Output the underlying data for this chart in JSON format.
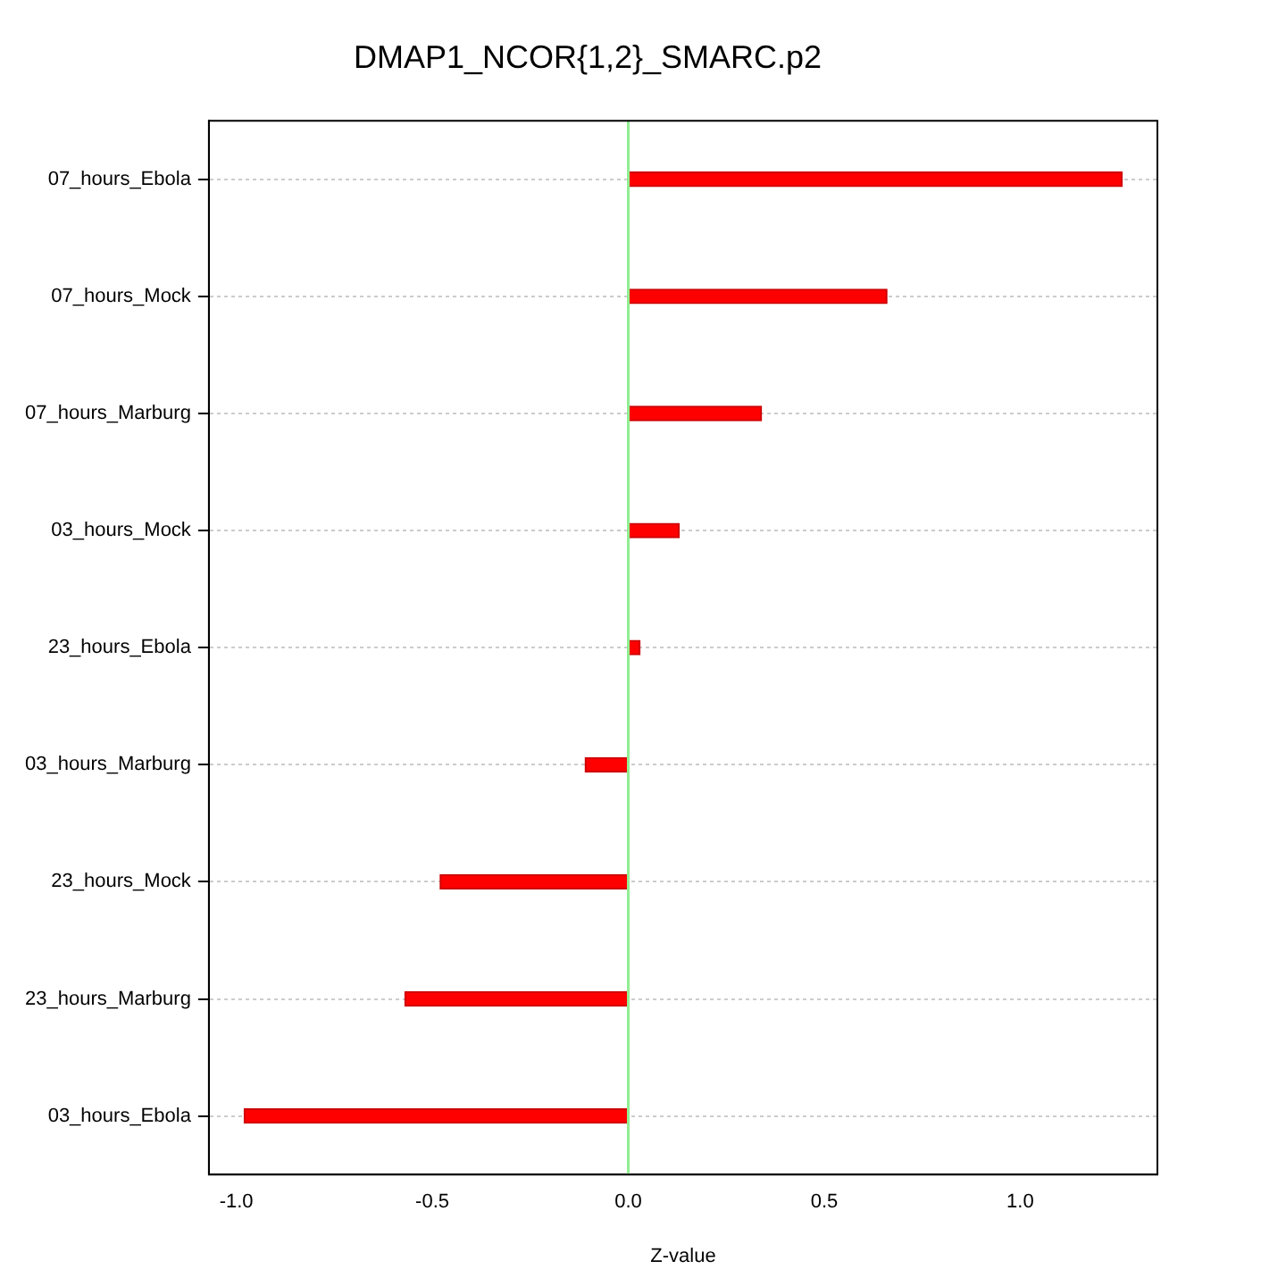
{
  "chart_data": {
    "type": "bar",
    "orientation": "horizontal",
    "title": "DMAP1_NCOR{1,2}_SMARC.p2",
    "xlabel": "Z-value",
    "categories": [
      "07_hours_Ebola",
      "07_hours_Mock",
      "07_hours_Marburg",
      "03_hours_Mock",
      "23_hours_Ebola",
      "03_hours_Marburg",
      "23_hours_Mock",
      "23_hours_Marburg",
      "03_hours_Ebola"
    ],
    "values": [
      1.26,
      0.66,
      0.34,
      0.13,
      0.03,
      -0.11,
      -0.48,
      -0.57,
      -0.98
    ],
    "color": "#ff0000",
    "xlim": [
      -1.07,
      1.35
    ],
    "xticks": [
      {
        "value": -1,
        "label": "-1.0"
      },
      {
        "value": -0.5,
        "label": "-0.5"
      },
      {
        "value": 0,
        "label": "0.0"
      },
      {
        "value": 0.5,
        "label": "0.5"
      },
      {
        "value": 1,
        "label": "1.0"
      }
    ],
    "ref_lines": [
      {
        "axis": "x",
        "value": 0,
        "color": "#90ee90"
      }
    ],
    "grid": "y",
    "legend": false
  }
}
